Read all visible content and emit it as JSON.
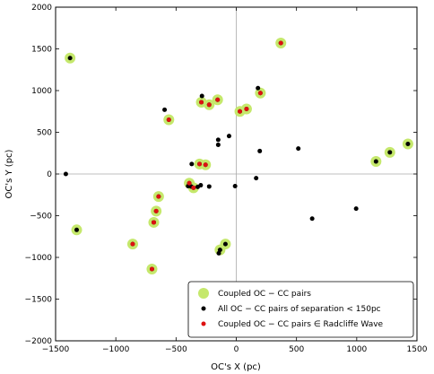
{
  "chart_data": {
    "type": "scatter",
    "title": "",
    "xlabel": "OC's  X  (pc)",
    "ylabel": "OC's  Y  (pc)",
    "xlim": [
      -1500,
      1500
    ],
    "ylim": [
      -2000,
      2000
    ],
    "xticks": [
      -1500,
      -1000,
      -500,
      0,
      500,
      1000,
      1500
    ],
    "yticks": [
      -2000,
      -1500,
      -1000,
      -500,
      0,
      500,
      1000,
      1500,
      2000
    ],
    "zero_lines": true,
    "grid": false,
    "legend_position": "lower-right",
    "colors": {
      "coupled": "#c5e86c",
      "all_pairs": "#000000",
      "radcliffe": "#dd1111",
      "zero_line": "#aaaaaa"
    },
    "series": [
      {
        "name": "Coupled  OC − CC  pairs",
        "marker": "large-circle",
        "color": "#c5e86c",
        "points": [
          [
            -1380,
            1390
          ],
          [
            -560,
            650
          ],
          [
            -290,
            860
          ],
          [
            -225,
            830
          ],
          [
            -155,
            890
          ],
          [
            30,
            750
          ],
          [
            85,
            780
          ],
          [
            200,
            970
          ],
          [
            370,
            1570
          ],
          [
            -1325,
            -670
          ],
          [
            -860,
            -840
          ],
          [
            -700,
            -1140
          ],
          [
            -685,
            -580
          ],
          [
            -665,
            -445
          ],
          [
            -645,
            -270
          ],
          [
            -390,
            -110
          ],
          [
            -355,
            -165
          ],
          [
            -305,
            120
          ],
          [
            -255,
            110
          ],
          [
            -135,
            -910
          ],
          [
            -90,
            -840
          ],
          [
            1160,
            150
          ],
          [
            1275,
            260
          ],
          [
            1425,
            360
          ]
        ]
      },
      {
        "name": "All  OC − CC  pairs  of  separation < 150pc",
        "marker": "small-dot",
        "color": "#000000",
        "points": [
          [
            -1380,
            1390
          ],
          [
            -560,
            650
          ],
          [
            -290,
            860
          ],
          [
            -225,
            830
          ],
          [
            -155,
            890
          ],
          [
            30,
            750
          ],
          [
            85,
            780
          ],
          [
            200,
            970
          ],
          [
            370,
            1570
          ],
          [
            -1325,
            -670
          ],
          [
            -860,
            -840
          ],
          [
            -700,
            -1140
          ],
          [
            -685,
            -580
          ],
          [
            -665,
            -445
          ],
          [
            -645,
            -270
          ],
          [
            -390,
            -110
          ],
          [
            -355,
            -165
          ],
          [
            -305,
            120
          ],
          [
            -255,
            110
          ],
          [
            -135,
            -910
          ],
          [
            -90,
            -840
          ],
          [
            1160,
            150
          ],
          [
            1275,
            260
          ],
          [
            1425,
            360
          ],
          [
            -595,
            770
          ],
          [
            -285,
            935
          ],
          [
            180,
            1030
          ],
          [
            -150,
            410
          ],
          [
            -150,
            350
          ],
          [
            -60,
            455
          ],
          [
            195,
            275
          ],
          [
            515,
            305
          ],
          [
            -1415,
            0
          ],
          [
            -370,
            120
          ],
          [
            -400,
            -145
          ],
          [
            -375,
            -150
          ],
          [
            -320,
            -155
          ],
          [
            -295,
            -135
          ],
          [
            -225,
            -150
          ],
          [
            -10,
            -145
          ],
          [
            165,
            -50
          ],
          [
            630,
            -535
          ],
          [
            995,
            -415
          ],
          [
            -145,
            -950
          ]
        ]
      },
      {
        "name": "Coupled  OC − CC  pairs ∈ Radcliffe Wave",
        "marker": "small-dot",
        "color": "#dd1111",
        "points": [
          [
            -560,
            650
          ],
          [
            -290,
            860
          ],
          [
            -225,
            830
          ],
          [
            -155,
            890
          ],
          [
            30,
            750
          ],
          [
            85,
            780
          ],
          [
            200,
            970
          ],
          [
            370,
            1570
          ],
          [
            -860,
            -840
          ],
          [
            -700,
            -1140
          ],
          [
            -685,
            -580
          ],
          [
            -665,
            -445
          ],
          [
            -645,
            -270
          ],
          [
            -390,
            -110
          ],
          [
            -355,
            -165
          ],
          [
            -305,
            120
          ],
          [
            -255,
            110
          ]
        ]
      }
    ]
  }
}
